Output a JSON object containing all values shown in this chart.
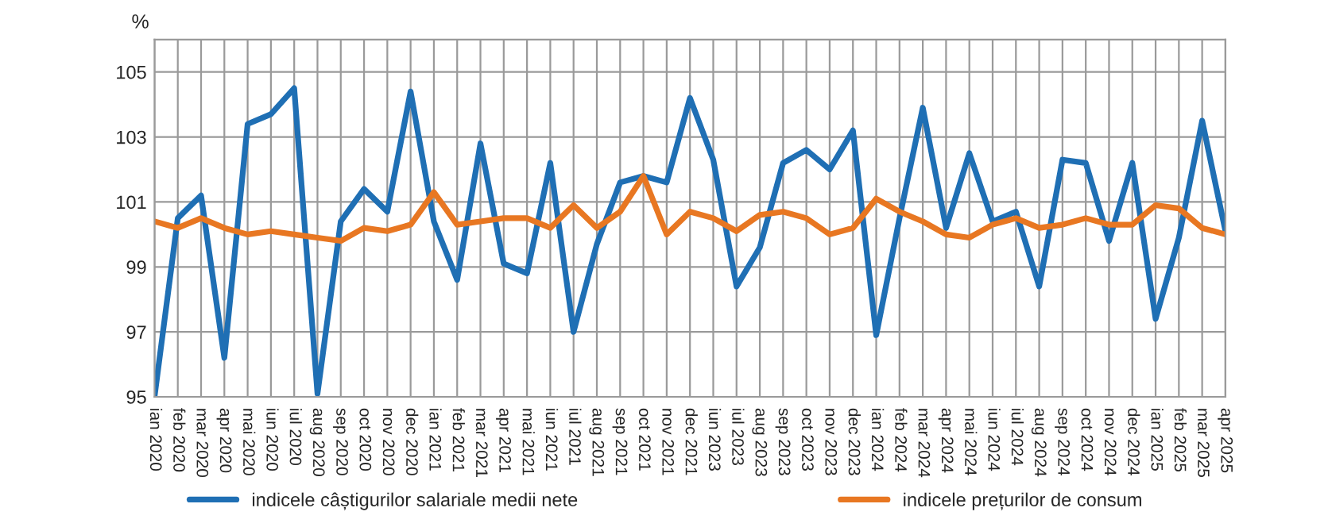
{
  "chart_data": {
    "type": "line",
    "ylabel": "%",
    "categories": [
      "ian 2020",
      "feb 2020",
      "mar 2020",
      "apr 2020",
      "mai 2020",
      "iun 2020",
      "iul 2020",
      "aug 2020",
      "sep 2020",
      "oct 2020",
      "nov 2020",
      "dec 2020",
      "ian 2021",
      "feb 2021",
      "mar 2021",
      "apr 2021",
      "mai 2021",
      "iun 2021",
      "iul 2021",
      "aug 2021",
      "sep 2021",
      "oct 2021",
      "nov 2021",
      "dec 2021",
      "iun 2023",
      "iul 2023",
      "aug 2023",
      "sep 2023",
      "oct 2023",
      "nov 2023",
      "dec 2023",
      "ian 2024",
      "feb 2024",
      "mar 2024",
      "apr 2024",
      "mai 2024",
      "iun 2024",
      "iul 2024",
      "aug 2024",
      "sep 2024",
      "oct 2024",
      "nov 2024",
      "dec 2024",
      "ian 2025",
      "feb 2025",
      "mar 2025",
      "apr 2025"
    ],
    "series": [
      {
        "name": "indicele câștigurilor salariale medii nete",
        "color": "#1f6fb4",
        "values": [
          95.0,
          100.5,
          101.2,
          96.2,
          103.4,
          103.7,
          104.5,
          95.1,
          100.4,
          101.4,
          100.7,
          104.4,
          100.4,
          98.6,
          102.8,
          99.1,
          98.8,
          102.2,
          97.0,
          99.7,
          101.6,
          101.8,
          101.6,
          104.2,
          102.3,
          98.4,
          99.6,
          102.2,
          102.6,
          102.0,
          103.2,
          96.9,
          100.5,
          103.9,
          100.2,
          102.5,
          100.4,
          100.7,
          98.4,
          102.3,
          102.2,
          99.8,
          102.2,
          97.4,
          99.9,
          103.5,
          100.1
        ]
      },
      {
        "name": "indicele prețurilor de consum",
        "color": "#e87722",
        "values": [
          100.4,
          100.2,
          100.5,
          100.2,
          100.0,
          100.1,
          100.0,
          99.9,
          99.8,
          100.2,
          100.1,
          100.3,
          101.3,
          100.3,
          100.4,
          100.5,
          100.5,
          100.2,
          100.9,
          100.2,
          100.7,
          101.8,
          100.0,
          100.7,
          100.5,
          100.1,
          100.6,
          100.7,
          100.5,
          100.0,
          100.2,
          101.1,
          100.7,
          100.4,
          100.0,
          99.9,
          100.3,
          100.5,
          100.2,
          100.3,
          100.5,
          100.3,
          100.3,
          100.9,
          100.8,
          100.2,
          100.0
        ]
      }
    ],
    "ylim": [
      95,
      106
    ],
    "yticks": [
      95,
      97,
      99,
      101,
      103,
      105
    ],
    "grid": true,
    "legend": "bottom",
    "marker": "none",
    "line_style": "solid"
  }
}
